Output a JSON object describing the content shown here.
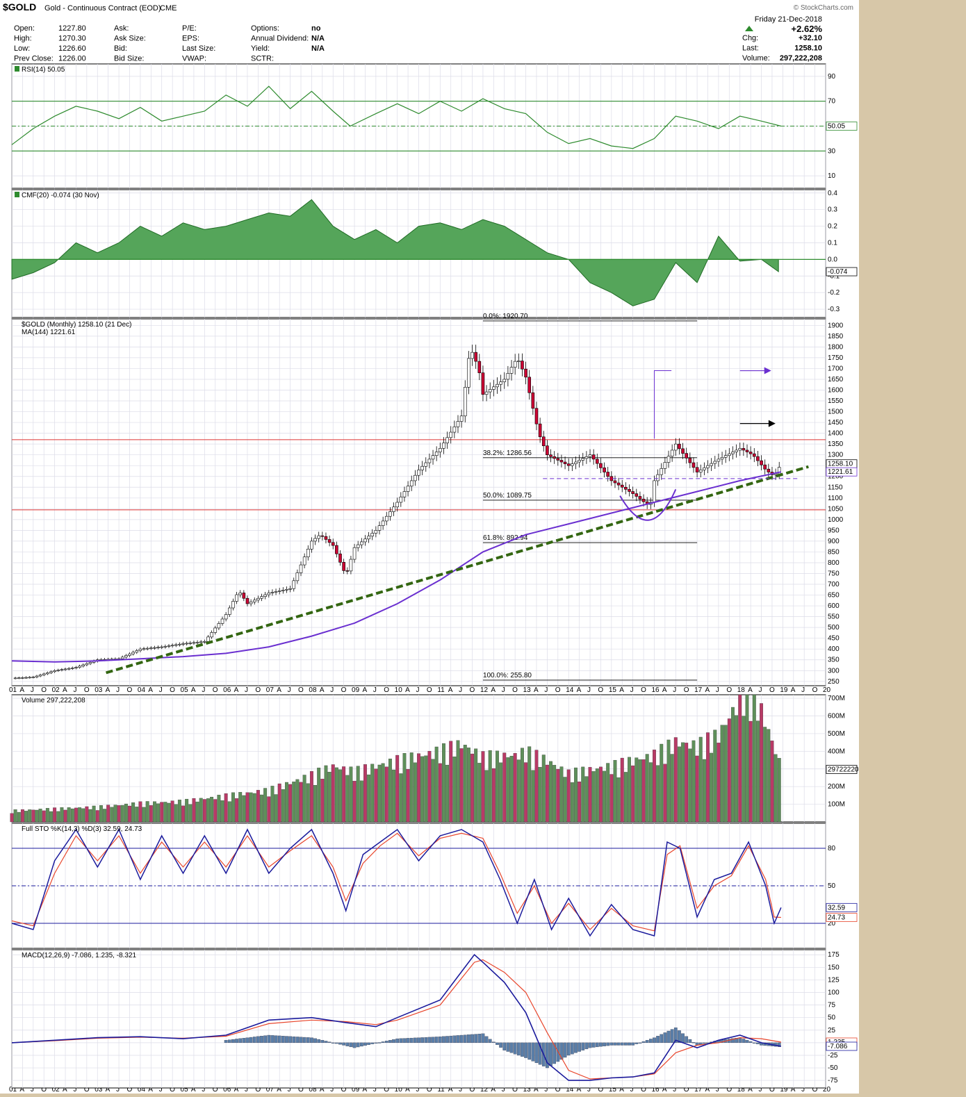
{
  "header": {
    "symbol": "$GOLD",
    "name": "Gold - Continuous Contract (EOD)",
    "exchange": "CME",
    "credit": "© StockCharts.com",
    "date": "Friday 21-Dec-2018",
    "change_pct": "+2.62%",
    "rows": [
      {
        "k1": "Open:",
        "v1": "1227.80",
        "k2": "Ask:",
        "k3": "P/E:",
        "k4": "Options:",
        "v4": "no"
      },
      {
        "k1": "High:",
        "v1": "1270.30",
        "k2": "Ask Size:",
        "k3": "EPS:",
        "k4": "Annual Dividend:",
        "v4": "N/A"
      },
      {
        "k1": "Low:",
        "v1": "1226.60",
        "k2": "Bid:",
        "k3": "Last Size:",
        "k4": "Yield:",
        "v4": "N/A"
      },
      {
        "k1": "Prev Close:",
        "v1": "1226.00",
        "k2": "Bid Size:",
        "k3": "VWAP:",
        "k4": "SCTR:",
        "v4": ""
      }
    ],
    "right_rows": [
      {
        "k": "Chg:",
        "v": "+32.10"
      },
      {
        "k": "Last:",
        "v": "1258.10"
      },
      {
        "k": "Volume:",
        "v": "297,222,208"
      }
    ]
  },
  "colors": {
    "up": "#ffffff",
    "down": "#cc0033",
    "green_fill": "#55a55a",
    "line_green": "#2e8b2e",
    "ma": "#6a2fd0",
    "macd": "#1a1a9c",
    "signal": "#e8452b",
    "trend": "#336611",
    "hist": "#5a7ea8"
  },
  "time_axis": [
    "01",
    "A",
    "J",
    "O",
    "02",
    "A",
    "J",
    "O",
    "03",
    "A",
    "J",
    "O",
    "04",
    "A",
    "J",
    "O",
    "05",
    "A",
    "J",
    "O",
    "06",
    "A",
    "J",
    "O",
    "07",
    "A",
    "J",
    "O",
    "08",
    "A",
    "J",
    "O",
    "09",
    "A",
    "J",
    "O",
    "10",
    "A",
    "J",
    "O",
    "11",
    "A",
    "J",
    "O",
    "12",
    "A",
    "J",
    "O",
    "13",
    "A",
    "J",
    "O",
    "14",
    "A",
    "J",
    "O",
    "15",
    "A",
    "J",
    "O",
    "16",
    "A",
    "J",
    "O",
    "17",
    "A",
    "J",
    "O",
    "18",
    "A",
    "J",
    "O",
    "19",
    "A",
    "J",
    "O",
    "20"
  ],
  "chart_data": [
    {
      "id": "rsi",
      "type": "line",
      "title": "RSI(14) 50.05",
      "last_value": "50.05",
      "ylim": [
        0,
        100
      ],
      "y_ticks": [
        "90",
        "70",
        "50",
        "30",
        "10"
      ],
      "levels": [
        70,
        30
      ],
      "x": [
        2001.0,
        2001.5,
        2002.0,
        2002.5,
        2003.0,
        2003.5,
        2004.0,
        2004.5,
        2005.0,
        2005.5,
        2006.0,
        2006.5,
        2007.0,
        2007.5,
        2008.0,
        2008.5,
        2008.9,
        2009.5,
        2010.0,
        2010.5,
        2011.0,
        2011.5,
        2012.0,
        2012.5,
        2013.0,
        2013.5,
        2014.0,
        2014.5,
        2015.0,
        2015.5,
        2016.0,
        2016.5,
        2017.0,
        2017.5,
        2018.0,
        2018.5,
        2018.96
      ],
      "values": [
        35,
        48,
        58,
        66,
        62,
        56,
        65,
        54,
        58,
        62,
        75,
        66,
        82,
        64,
        78,
        62,
        50,
        60,
        68,
        60,
        70,
        62,
        72,
        64,
        60,
        45,
        36,
        40,
        34,
        32,
        40,
        58,
        54,
        48,
        58,
        54,
        50
      ]
    },
    {
      "id": "cmf",
      "type": "area",
      "title": "CMF(20) -0.074 (30 Nov)",
      "last_value": "-0.074",
      "ylim": [
        -0.35,
        0.42
      ],
      "y_ticks": [
        "0.4",
        "0.3",
        "0.2",
        "0.1",
        "0.0",
        "-0.1",
        "-0.2",
        "-0.3"
      ],
      "x": [
        2001.0,
        2001.5,
        2002.0,
        2002.5,
        2003.0,
        2003.5,
        2004.0,
        2004.5,
        2005.0,
        2005.5,
        2006.0,
        2006.5,
        2007.0,
        2007.5,
        2008.0,
        2008.5,
        2009.0,
        2009.5,
        2010.0,
        2010.5,
        2011.0,
        2011.5,
        2012.0,
        2012.5,
        2013.0,
        2013.5,
        2014.0,
        2014.5,
        2015.0,
        2015.5,
        2016.0,
        2016.5,
        2017.0,
        2017.5,
        2018.0,
        2018.5,
        2018.9
      ],
      "values": [
        -0.12,
        -0.08,
        -0.02,
        0.1,
        0.04,
        0.1,
        0.2,
        0.14,
        0.22,
        0.18,
        0.2,
        0.24,
        0.28,
        0.26,
        0.36,
        0.2,
        0.12,
        0.18,
        0.1,
        0.2,
        0.22,
        0.18,
        0.24,
        0.2,
        0.12,
        0.04,
        0.0,
        -0.14,
        -0.2,
        -0.28,
        -0.24,
        -0.02,
        -0.14,
        0.14,
        -0.01,
        0.0,
        -0.074
      ]
    },
    {
      "id": "price",
      "type": "candlestick",
      "title": "$GOLD (Monthly) 1258.10 (21 Dec)",
      "ma_label": "MA(144) 1221.61",
      "last_value": "1258.10",
      "ma_value": "1221.61",
      "ylim": [
        230,
        1930
      ],
      "y_ticks": [
        "1900",
        "1850",
        "1800",
        "1750",
        "1700",
        "1650",
        "1600",
        "1550",
        "1500",
        "1450",
        "1400",
        "1350",
        "1300",
        "1250",
        "1200",
        "1150",
        "1100",
        "1050",
        "1000",
        "950",
        "900",
        "850",
        "800",
        "750",
        "700",
        "650",
        "600",
        "550",
        "500",
        "450",
        "400",
        "350",
        "300",
        "250"
      ],
      "fib_levels": [
        {
          "label": "0.0%: 1920.70",
          "value": 1920.7
        },
        {
          "label": "38.2%: 1286.56",
          "value": 1286.56
        },
        {
          "label": "50.0%: 1089.75",
          "value": 1089.75
        },
        {
          "label": "61.8%: 892.94",
          "value": 892.94
        },
        {
          "label": "100.0%: 255.80",
          "value": 255.8
        }
      ],
      "horizontal_lines": [
        1370,
        1045
      ],
      "close_path": {
        "x": [
          2001.0,
          2001.5,
          2002.0,
          2002.5,
          2003.0,
          2003.5,
          2004.0,
          2004.5,
          2005.0,
          2005.5,
          2006.0,
          2006.3,
          2006.5,
          2007.0,
          2007.5,
          2008.0,
          2008.2,
          2008.5,
          2008.8,
          2009.0,
          2009.5,
          2010.0,
          2010.5,
          2011.0,
          2011.5,
          2011.7,
          2011.9,
          2012.0,
          2012.5,
          2012.8,
          2013.0,
          2013.3,
          2013.5,
          2014.0,
          2014.5,
          2015.0,
          2015.5,
          2015.9,
          2016.0,
          2016.5,
          2017.0,
          2017.5,
          2018.0,
          2018.3,
          2018.6,
          2018.8,
          2018.96
        ],
        "values": [
          265,
          270,
          300,
          315,
          350,
          355,
          400,
          410,
          425,
          435,
          560,
          670,
          610,
          660,
          680,
          900,
          930,
          880,
          740,
          870,
          950,
          1080,
          1230,
          1330,
          1480,
          1800,
          1700,
          1580,
          1650,
          1750,
          1660,
          1400,
          1300,
          1250,
          1300,
          1180,
          1120,
          1060,
          1180,
          1350,
          1220,
          1280,
          1330,
          1300,
          1230,
          1200,
          1258
        ]
      },
      "ma_path": {
        "x": [
          2001.0,
          2002.0,
          2003.0,
          2004.0,
          2005.0,
          2006.0,
          2007.0,
          2008.0,
          2009.0,
          2010.0,
          2011.0,
          2012.0,
          2013.0,
          2014.0,
          2015.0,
          2016.0,
          2017.0,
          2018.0,
          2018.96
        ],
        "values": [
          345,
          340,
          345,
          355,
          365,
          380,
          410,
          460,
          520,
          610,
          720,
          850,
          930,
          980,
          1030,
          1080,
          1130,
          1180,
          1221
        ]
      }
    },
    {
      "id": "volume",
      "type": "bar",
      "title": "Volume 297,222,208",
      "last_value": "297222208",
      "ylim": [
        0,
        720
      ],
      "y_ticks": [
        "700M",
        "600M",
        "500M",
        "400M",
        "300M",
        "200M",
        "100M"
      ],
      "x": [
        2001.0,
        2002.0,
        2003.0,
        2004.0,
        2005.0,
        2006.0,
        2007.0,
        2008.0,
        2008.5,
        2009.0,
        2010.0,
        2011.0,
        2011.5,
        2012.0,
        2012.8,
        2013.0,
        2013.5,
        2014.0,
        2015.0,
        2016.0,
        2016.5,
        2017.0,
        2017.5,
        2018.0,
        2018.2,
        2018.5,
        2018.96
      ],
      "values": [
        60,
        70,
        80,
        100,
        110,
        140,
        170,
        250,
        300,
        270,
        330,
        380,
        420,
        350,
        360,
        380,
        330,
        260,
        300,
        360,
        430,
        410,
        470,
        660,
        720,
        600,
        297
      ]
    },
    {
      "id": "sto",
      "type": "line",
      "title": "Full STO %K(14,3) %D(3) 32.59, 24.73",
      "last_values": [
        "32.59",
        "24.73"
      ],
      "ylim": [
        0,
        100
      ],
      "y_ticks": [
        "80",
        "50",
        "20"
      ],
      "levels": [
        80,
        50,
        20
      ],
      "series": [
        {
          "name": "%K",
          "x": [
            2001.0,
            2001.5,
            2002.0,
            2002.5,
            2003.0,
            2003.5,
            2004.0,
            2004.5,
            2005.0,
            2005.5,
            2006.0,
            2006.5,
            2007.0,
            2007.5,
            2008.0,
            2008.5,
            2008.8,
            2009.2,
            2009.6,
            2010.0,
            2010.5,
            2011.0,
            2011.5,
            2012.0,
            2012.4,
            2012.8,
            2013.2,
            2013.6,
            2014.0,
            2014.5,
            2015.0,
            2015.5,
            2016.0,
            2016.3,
            2016.6,
            2017.0,
            2017.4,
            2017.8,
            2018.2,
            2018.6,
            2018.8,
            2018.96
          ],
          "values": [
            20,
            15,
            70,
            95,
            65,
            95,
            55,
            90,
            60,
            90,
            60,
            95,
            60,
            80,
            95,
            60,
            30,
            75,
            85,
            95,
            70,
            90,
            95,
            85,
            55,
            20,
            55,
            15,
            40,
            10,
            35,
            15,
            10,
            85,
            80,
            25,
            55,
            60,
            85,
            50,
            20,
            32.59
          ]
        },
        {
          "name": "%D",
          "x": [
            2001.0,
            2001.5,
            2002.0,
            2002.5,
            2003.0,
            2003.5,
            2004.0,
            2004.5,
            2005.0,
            2005.5,
            2006.0,
            2006.5,
            2007.0,
            2007.5,
            2008.0,
            2008.5,
            2008.8,
            2009.2,
            2009.6,
            2010.0,
            2010.5,
            2011.0,
            2011.5,
            2012.0,
            2012.4,
            2012.8,
            2013.2,
            2013.6,
            2014.0,
            2014.5,
            2015.0,
            2015.5,
            2016.0,
            2016.3,
            2016.6,
            2017.0,
            2017.4,
            2017.8,
            2018.2,
            2018.6,
            2018.8,
            2018.96
          ],
          "values": [
            22,
            18,
            60,
            90,
            70,
            90,
            60,
            85,
            65,
            85,
            65,
            90,
            65,
            78,
            90,
            65,
            38,
            68,
            82,
            92,
            74,
            88,
            92,
            88,
            60,
            28,
            50,
            20,
            36,
            15,
            32,
            18,
            14,
            75,
            82,
            32,
            50,
            58,
            82,
            55,
            25,
            24.73
          ]
        }
      ]
    },
    {
      "id": "macd",
      "type": "line",
      "title": "MACD(12,26,9) -7.086, 1.235, -8.321",
      "last_values": [
        "-7.086",
        "1.235"
      ],
      "ylim": [
        -90,
        185
      ],
      "y_ticks": [
        "175",
        "150",
        "125",
        "100",
        "75",
        "50",
        "25",
        "0",
        "-25",
        "-50",
        "-75"
      ],
      "series": [
        {
          "name": "MACD",
          "x": [
            2001.0,
            2002.0,
            2003.0,
            2004.0,
            2005.0,
            2006.0,
            2007.0,
            2008.0,
            2008.8,
            2009.5,
            2010.0,
            2011.0,
            2011.8,
            2012.0,
            2012.5,
            2013.0,
            2013.5,
            2014.0,
            2014.5,
            2015.0,
            2015.5,
            2016.0,
            2016.5,
            2017.0,
            2017.5,
            2018.0,
            2018.5,
            2018.96
          ],
          "values": [
            0,
            5,
            10,
            12,
            8,
            15,
            45,
            50,
            40,
            32,
            50,
            85,
            175,
            160,
            120,
            60,
            -40,
            -75,
            -75,
            -70,
            -68,
            -60,
            5,
            -10,
            5,
            15,
            0,
            -7.086
          ]
        },
        {
          "name": "Signal",
          "x": [
            2001.0,
            2002.0,
            2003.0,
            2004.0,
            2005.0,
            2006.0,
            2007.0,
            2008.0,
            2008.8,
            2009.5,
            2010.0,
            2011.0,
            2011.8,
            2012.0,
            2012.5,
            2013.0,
            2013.5,
            2014.0,
            2014.5,
            2015.0,
            2015.5,
            2016.0,
            2016.5,
            2017.0,
            2017.5,
            2018.0,
            2018.5,
            2018.96
          ],
          "values": [
            0,
            4,
            9,
            11,
            9,
            13,
            38,
            45,
            42,
            36,
            45,
            75,
            160,
            165,
            140,
            100,
            20,
            -55,
            -72,
            -70,
            -68,
            -62,
            -20,
            -5,
            0,
            10,
            8,
            1.235
          ]
        }
      ],
      "histogram": {
        "x": [
          2006.0,
          2007.0,
          2008.0,
          2009.0,
          2010.0,
          2011.0,
          2012.0,
          2012.5,
          2013.0,
          2013.5,
          2014.0,
          2014.5,
          2015.0,
          2015.5,
          2016.0,
          2016.5,
          2017.0,
          2017.5,
          2018.0,
          2018.5,
          2018.96
        ],
        "values": [
          5,
          15,
          10,
          -10,
          8,
          12,
          18,
          -15,
          -30,
          -50,
          -25,
          -10,
          -5,
          -5,
          10,
          30,
          -5,
          5,
          10,
          -5,
          -8.321
        ]
      }
    }
  ]
}
